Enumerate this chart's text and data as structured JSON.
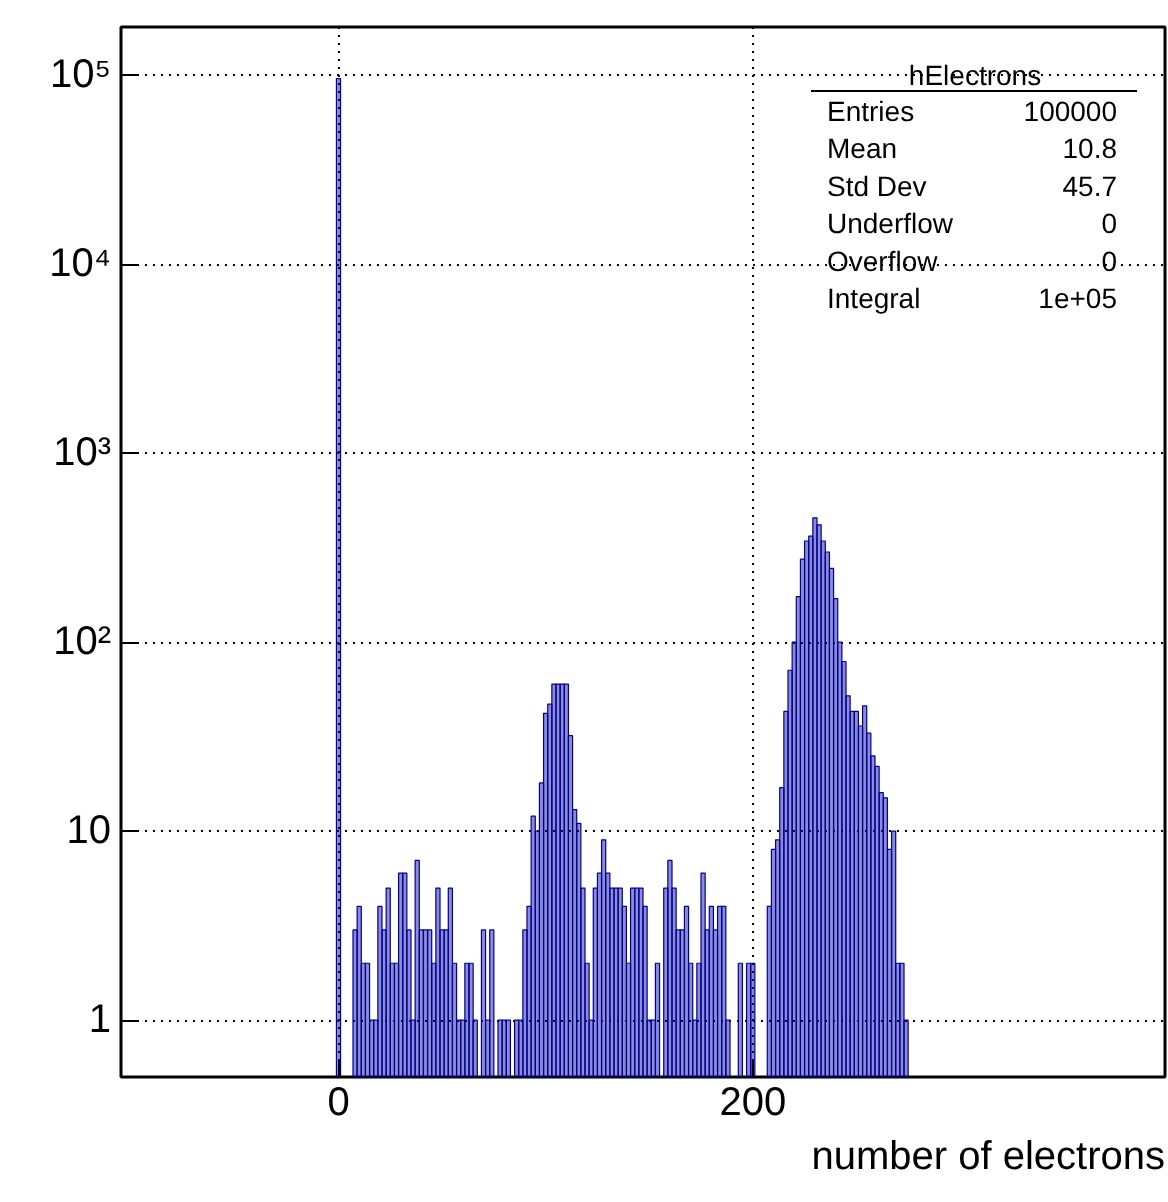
{
  "chart_data": {
    "type": "histogram",
    "xlabel": "number of electrons",
    "bins": [
      -1,
      1,
      3,
      5,
      7,
      9,
      11,
      13,
      15,
      17,
      19,
      21,
      23,
      25,
      27,
      29,
      31,
      33,
      35,
      37,
      39,
      41,
      43,
      45,
      47,
      49,
      51,
      53,
      55,
      57,
      59,
      61,
      63,
      65,
      67,
      69,
      71,
      73,
      75,
      77,
      79,
      81,
      83,
      85,
      87,
      89,
      91,
      93,
      95,
      97,
      99,
      101,
      103,
      105,
      107,
      109,
      111,
      113,
      115,
      117,
      119,
      121,
      123,
      125,
      127,
      129,
      131,
      133,
      135,
      137,
      139,
      141,
      143,
      145,
      147,
      149,
      151,
      153,
      155,
      157,
      159,
      161,
      163,
      165,
      167,
      169,
      171,
      173,
      175,
      177,
      179,
      181,
      183,
      185,
      187,
      189,
      191,
      193,
      195,
      197,
      199,
      201,
      203,
      205,
      207,
      209,
      211,
      213,
      215,
      217,
      219,
      221,
      223,
      225,
      227,
      229,
      231,
      233,
      235,
      237,
      239,
      241,
      243,
      245,
      247,
      249,
      251,
      253,
      255,
      257,
      259,
      261,
      263,
      265,
      267,
      269,
      271,
      273,
      275,
      277
    ],
    "values": [
      96000,
      null,
      null,
      null,
      3,
      4,
      2,
      2,
      1,
      1,
      4,
      3,
      5,
      2,
      2,
      6,
      6,
      3,
      1,
      7,
      3,
      3,
      3,
      2,
      5,
      3,
      3,
      5,
      2,
      1,
      1,
      2,
      2,
      1,
      null,
      3,
      1,
      3,
      null,
      1,
      1,
      1,
      null,
      1,
      1,
      3,
      4,
      12,
      10,
      18,
      42,
      47,
      60,
      60,
      60,
      60,
      32,
      13,
      11,
      5,
      2,
      1,
      5,
      6,
      9,
      6,
      5,
      5,
      5,
      4,
      2,
      5,
      5,
      5,
      4,
      1,
      1,
      2,
      null,
      5,
      7,
      5,
      3,
      3,
      4,
      2,
      1,
      2,
      6,
      3,
      4,
      3,
      4,
      4,
      1,
      null,
      null,
      2,
      null,
      2,
      2,
      null,
      null,
      null,
      4,
      8,
      9,
      17,
      43,
      71,
      100,
      174,
      275,
      343,
      364,
      455,
      418,
      343,
      300,
      246,
      170,
      100,
      79,
      52,
      43,
      43,
      36,
      46,
      33,
      25,
      22,
      16,
      15,
      8,
      10,
      2,
      2,
      1,
      null
    ],
    "color": "#000099",
    "xlim": [
      -105,
      399
    ],
    "ylim": [
      0.5,
      180000
    ],
    "xticks": [
      0,
      200
    ],
    "yticks": [
      1,
      10,
      {
        "value": 100,
        "label": "10²"
      },
      {
        "value": 1000,
        "label": "10³"
      },
      {
        "value": 10000,
        "label": "10⁴"
      },
      {
        "value": 100000,
        "label": "10⁵"
      }
    ],
    "log": "y",
    "grid": true,
    "annotations": [
      "hElectrons",
      "Entries",
      "100000",
      "Mean",
      "10.8",
      "Std Dev",
      "45.7",
      "Underflow",
      "0",
      "Overflow",
      "0",
      "Integral",
      "1e+05"
    ]
  }
}
